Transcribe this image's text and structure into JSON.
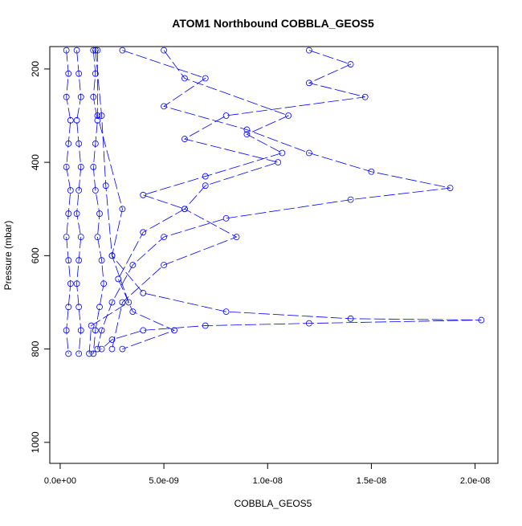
{
  "chart_data": {
    "type": "line",
    "title": "ATOM1 Northbound COBBLA_GEOS5",
    "x_label": "COBBLA_GEOS5",
    "y_label": "Pressure (mbar)",
    "color": "#0000ff",
    "marker": "circle",
    "xlim": [
      -5e-10,
      2.11e-08
    ],
    "ylim": [
      1045,
      152
    ],
    "xticks": [
      {
        "value": 0,
        "label": "0.0e+00"
      },
      {
        "value": 5e-09,
        "label": "5.0e-09"
      },
      {
        "value": 1e-08,
        "label": "1.0e-08"
      },
      {
        "value": 1.5e-08,
        "label": "1.5e-08"
      },
      {
        "value": 2e-08,
        "label": "2.0e-08"
      }
    ],
    "yticks": [
      200,
      400,
      600,
      800,
      1000
    ],
    "series": [
      {
        "x": [
          3e-10,
          4e-10,
          3e-10,
          5e-10,
          4e-10,
          3e-10,
          5e-10,
          4e-10,
          3e-10,
          4e-10,
          5e-10,
          4e-10,
          3e-10,
          4e-10
        ],
        "y": [
          160,
          210,
          260,
          310,
          360,
          410,
          460,
          510,
          560,
          610,
          660,
          710,
          760,
          810
        ]
      },
      {
        "x": [
          8e-10,
          9e-10,
          1e-09,
          8e-10,
          9e-10,
          1e-09,
          9e-10,
          8e-10,
          1e-09,
          9e-10,
          8e-10,
          9e-10,
          1e-09,
          9e-10
        ],
        "y": [
          160,
          210,
          260,
          310,
          360,
          410,
          460,
          510,
          560,
          610,
          660,
          710,
          760,
          810
        ]
      },
      {
        "x": [
          1.6e-09,
          1.7e-09,
          1.6e-09,
          1.8e-09,
          1.7e-09,
          1.6e-09,
          1.7e-09,
          1.9e-09,
          1.8e-09,
          2e-09,
          2.1e-09,
          1.9e-09,
          1.7e-09,
          1.6e-09
        ],
        "y": [
          160,
          210,
          260,
          310,
          360,
          410,
          460,
          510,
          560,
          610,
          660,
          710,
          760,
          810
        ]
      },
      {
        "x": [
          3e-09,
          7e-09,
          5e-09,
          9e-09,
          1.2e-08,
          1.5e-08,
          1.88e-08,
          1.4e-08,
          8e-09,
          5e-09,
          3.5e-09,
          2.5e-09,
          2e-09,
          1.8e-09
        ],
        "y": [
          160,
          220,
          280,
          330,
          380,
          420,
          455,
          480,
          520,
          560,
          620,
          700,
          760,
          800
        ]
      },
      {
        "x": [
          1.8e-09,
          1.8e-09,
          3e-09,
          2.5e-09,
          4e-09,
          8e-09,
          1.4e-08,
          2.03e-08,
          1.2e-08,
          7e-09,
          4e-09,
          2.5e-09,
          2e-09
        ],
        "y": [
          160,
          300,
          500,
          600,
          680,
          720,
          735,
          738,
          745,
          750,
          760,
          780,
          800
        ]
      },
      {
        "x": [
          1.2e-08,
          1.4e-08,
          1.2e-08,
          1.47e-08,
          8e-09,
          6e-09,
          1.05e-08,
          7e-09,
          6e-09,
          8.5e-09,
          5e-09,
          3e-09,
          2.5e-09
        ],
        "y": [
          160,
          190,
          230,
          260,
          300,
          350,
          400,
          450,
          500,
          560,
          620,
          700,
          800
        ]
      },
      {
        "x": [
          5e-09,
          6e-09,
          1.1e-08,
          9e-09,
          1.07e-08,
          7e-09,
          4e-09,
          6e-09,
          4e-09,
          2.8e-09,
          3.5e-09,
          5.5e-09,
          3e-09
        ],
        "y": [
          160,
          220,
          300,
          340,
          380,
          430,
          470,
          500,
          550,
          650,
          720,
          760,
          800
        ]
      },
      {
        "x": [
          1.7e-09,
          2e-09,
          2.2e-09,
          2.5e-09,
          3.3e-09,
          1.5e-09,
          1.4e-09
        ],
        "y": [
          160,
          300,
          450,
          600,
          700,
          750,
          810
        ]
      }
    ]
  }
}
